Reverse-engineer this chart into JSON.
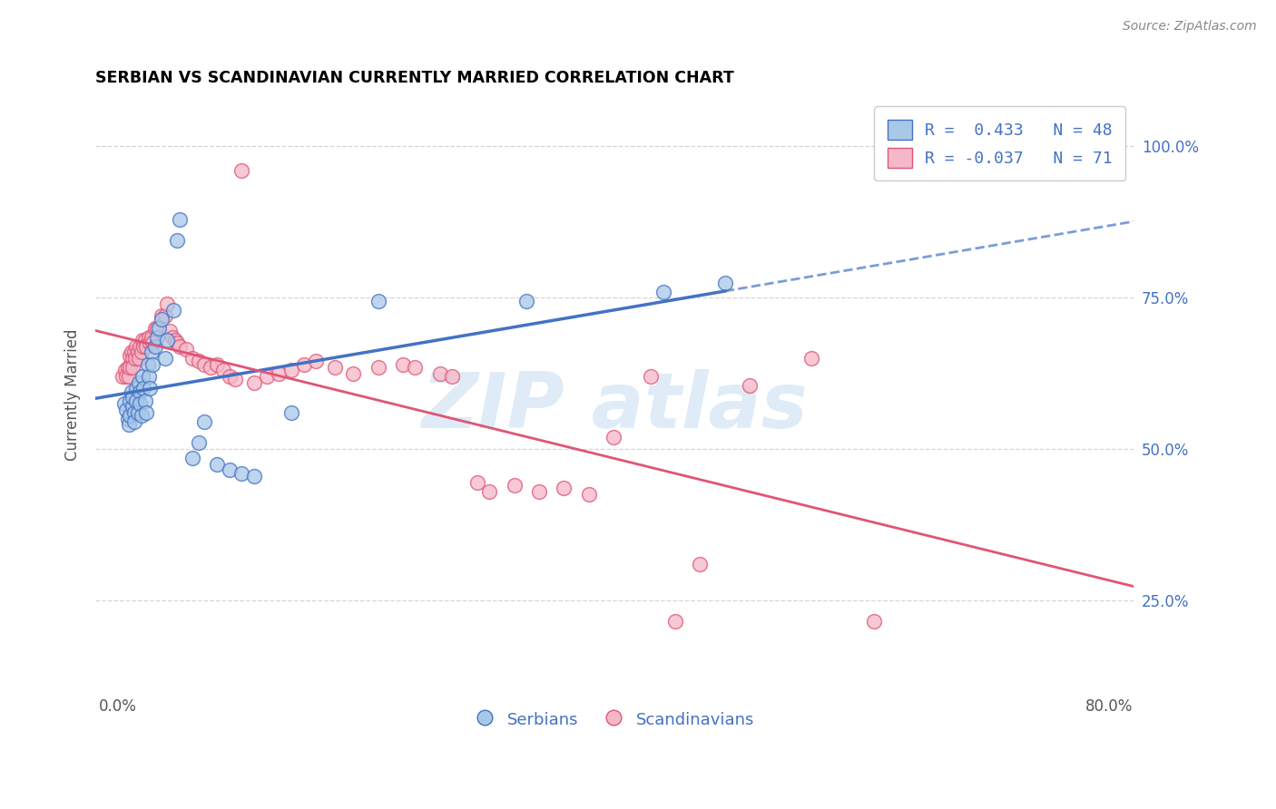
{
  "title": "SERBIAN VS SCANDINAVIAN CURRENTLY MARRIED CORRELATION CHART",
  "source": "Source: ZipAtlas.com",
  "ylabel": "Currently Married",
  "right_ytick_labels": [
    "25.0%",
    "50.0%",
    "75.0%",
    "100.0%"
  ],
  "right_ytick_vals": [
    0.25,
    0.5,
    0.75,
    1.0
  ],
  "xtick_labels": [
    "0.0%",
    "80.0%"
  ],
  "xtick_vals": [
    0.0,
    0.8
  ],
  "ylim": [
    0.1,
    1.08
  ],
  "xlim": [
    -0.018,
    0.82
  ],
  "blue_fill": "#a8c8e8",
  "blue_edge": "#4472c4",
  "pink_fill": "#f5b8c8",
  "pink_edge": "#e05575",
  "blue_line": "#4472c4",
  "pink_line": "#e05575",
  "grid_color": "#d5d5d5",
  "watermark_color": "#c0d8f0",
  "legend_text_color": "#4472c4",
  "blue_r": 0.433,
  "blue_n": 48,
  "pink_r": -0.037,
  "pink_n": 71,
  "blue_scatter_x": [
    0.005,
    0.007,
    0.008,
    0.009,
    0.01,
    0.01,
    0.011,
    0.012,
    0.012,
    0.013,
    0.013,
    0.015,
    0.015,
    0.016,
    0.017,
    0.018,
    0.018,
    0.019,
    0.02,
    0.021,
    0.022,
    0.023,
    0.024,
    0.025,
    0.026,
    0.027,
    0.028,
    0.03,
    0.032,
    0.033,
    0.035,
    0.038,
    0.04,
    0.045,
    0.048,
    0.05,
    0.06,
    0.065,
    0.07,
    0.08,
    0.09,
    0.1,
    0.11,
    0.14,
    0.21,
    0.33,
    0.44,
    0.49
  ],
  "blue_scatter_y": [
    0.575,
    0.565,
    0.55,
    0.54,
    0.58,
    0.555,
    0.595,
    0.57,
    0.585,
    0.56,
    0.545,
    0.6,
    0.58,
    0.56,
    0.61,
    0.595,
    0.575,
    0.555,
    0.62,
    0.6,
    0.58,
    0.56,
    0.64,
    0.62,
    0.6,
    0.66,
    0.64,
    0.67,
    0.685,
    0.7,
    0.715,
    0.65,
    0.68,
    0.73,
    0.845,
    0.88,
    0.485,
    0.51,
    0.545,
    0.475,
    0.465,
    0.46,
    0.455,
    0.56,
    0.745,
    0.745,
    0.76,
    0.775
  ],
  "pink_scatter_x": [
    0.004,
    0.006,
    0.007,
    0.008,
    0.009,
    0.01,
    0.01,
    0.011,
    0.012,
    0.012,
    0.013,
    0.014,
    0.015,
    0.016,
    0.017,
    0.018,
    0.019,
    0.02,
    0.021,
    0.022,
    0.023,
    0.025,
    0.026,
    0.027,
    0.028,
    0.03,
    0.032,
    0.035,
    0.038,
    0.04,
    0.042,
    0.044,
    0.046,
    0.048,
    0.05,
    0.055,
    0.06,
    0.065,
    0.07,
    0.075,
    0.08,
    0.085,
    0.09,
    0.095,
    0.1,
    0.11,
    0.12,
    0.13,
    0.14,
    0.15,
    0.16,
    0.175,
    0.19,
    0.21,
    0.23,
    0.24,
    0.26,
    0.27,
    0.29,
    0.3,
    0.32,
    0.34,
    0.36,
    0.38,
    0.4,
    0.43,
    0.45,
    0.47,
    0.51,
    0.56,
    0.61
  ],
  "pink_scatter_y": [
    0.62,
    0.63,
    0.62,
    0.635,
    0.62,
    0.655,
    0.635,
    0.66,
    0.65,
    0.635,
    0.66,
    0.65,
    0.67,
    0.66,
    0.65,
    0.67,
    0.66,
    0.68,
    0.67,
    0.68,
    0.67,
    0.685,
    0.675,
    0.685,
    0.675,
    0.7,
    0.7,
    0.72,
    0.72,
    0.74,
    0.695,
    0.685,
    0.68,
    0.675,
    0.67,
    0.665,
    0.65,
    0.645,
    0.64,
    0.635,
    0.64,
    0.63,
    0.62,
    0.615,
    0.96,
    0.61,
    0.62,
    0.625,
    0.63,
    0.64,
    0.645,
    0.635,
    0.625,
    0.635,
    0.64,
    0.635,
    0.625,
    0.62,
    0.445,
    0.43,
    0.44,
    0.43,
    0.435,
    0.425,
    0.52,
    0.62,
    0.215,
    0.31,
    0.605,
    0.65,
    0.215
  ]
}
